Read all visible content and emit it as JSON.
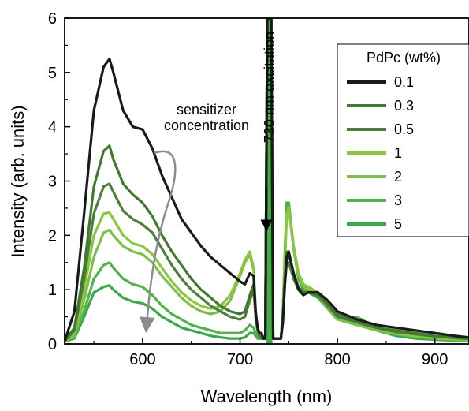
{
  "chart_data": {
    "type": "line",
    "xlabel": "Wavelength (nm)",
    "ylabel": "Intensity (arb. units)",
    "xlim": [
      520,
      935
    ],
    "ylim": [
      0,
      6
    ],
    "x_ticks": [
      600,
      700,
      800,
      900
    ],
    "y_ticks": [
      0,
      1,
      2,
      3,
      4,
      5,
      6
    ],
    "legend": {
      "title": "PdPc (wt%)",
      "placement": "top-right"
    },
    "annotations": {
      "sensitizer": [
        "sensitizer",
        "concentration"
      ],
      "excitation": "730 nm excitation",
      "excitation_wavelength": 730
    },
    "colors": {
      "0.1": "#1a1a1a",
      "0.3": "#3f7a2e",
      "0.5": "#4b7f3a",
      "1": "#8cc63f",
      "2": "#7cc04a",
      "3": "#4fb347",
      "5": "#39a84a",
      "excitation": "#3cb043",
      "arrow": "#8c8c8c"
    },
    "series": [
      {
        "name": "0.1",
        "x": [
          520,
          530,
          540,
          550,
          560,
          566,
          570,
          580,
          590,
          600,
          610,
          620,
          630,
          640,
          650,
          660,
          670,
          680,
          690,
          700,
          705,
          710,
          714,
          716,
          718,
          720,
          722,
          724,
          726,
          728,
          730,
          732,
          734,
          736,
          738,
          740,
          742,
          744,
          746,
          748,
          750,
          755,
          760,
          765,
          770,
          780,
          790,
          800,
          820,
          840,
          860,
          880,
          900,
          920,
          935
        ],
        "y": [
          0.05,
          0.6,
          2.4,
          4.3,
          5.1,
          5.25,
          5.0,
          4.3,
          4.0,
          3.95,
          3.6,
          3.1,
          2.7,
          2.3,
          2.05,
          1.8,
          1.6,
          1.45,
          1.3,
          1.15,
          1.1,
          1.3,
          1.25,
          0.6,
          0.3,
          0.2,
          0.2,
          0.1,
          0.1,
          6,
          6,
          6,
          0.1,
          0.1,
          0.1,
          0.1,
          0.1,
          0.4,
          1.1,
          1.6,
          1.7,
          1.3,
          1.0,
          0.9,
          0.95,
          0.95,
          0.8,
          0.6,
          0.45,
          0.35,
          0.3,
          0.25,
          0.2,
          0.15,
          0.12
        ]
      },
      {
        "name": "0.3",
        "x": [
          520,
          530,
          540,
          550,
          560,
          566,
          570,
          580,
          590,
          600,
          610,
          620,
          630,
          640,
          650,
          660,
          670,
          680,
          690,
          700,
          705,
          710,
          714,
          716,
          718,
          720,
          722,
          724,
          726,
          728,
          730,
          732,
          734,
          736,
          738,
          740,
          742,
          744,
          746,
          748,
          750,
          755,
          760,
          765,
          770,
          780,
          790,
          800,
          820,
          840,
          860,
          880,
          900,
          920,
          935
        ],
        "y": [
          0.05,
          0.3,
          1.4,
          2.9,
          3.55,
          3.65,
          3.4,
          2.95,
          2.75,
          2.6,
          2.35,
          2.0,
          1.7,
          1.45,
          1.2,
          1.0,
          0.85,
          0.7,
          0.6,
          0.55,
          0.6,
          0.9,
          1.1,
          0.5,
          0.25,
          0.15,
          0.1,
          0.1,
          0.1,
          6,
          6,
          6,
          0.1,
          0.1,
          0.1,
          0.1,
          0.1,
          0.5,
          1.2,
          1.7,
          1.65,
          1.3,
          1.05,
          0.95,
          0.95,
          0.9,
          0.75,
          0.55,
          0.4,
          0.3,
          0.25,
          0.2,
          0.15,
          0.12,
          0.1
        ]
      },
      {
        "name": "0.5",
        "x": [
          520,
          530,
          540,
          550,
          560,
          566,
          570,
          580,
          590,
          600,
          610,
          620,
          630,
          640,
          650,
          660,
          670,
          680,
          690,
          700,
          705,
          710,
          714,
          716,
          718,
          720,
          722,
          724,
          726,
          728,
          730,
          732,
          734,
          736,
          738,
          740,
          742,
          744,
          746,
          748,
          750,
          755,
          760,
          765,
          770,
          780,
          790,
          800,
          820,
          840,
          860,
          880,
          900,
          920,
          935
        ],
        "y": [
          0.05,
          0.25,
          1.2,
          2.4,
          2.9,
          2.95,
          2.8,
          2.45,
          2.3,
          2.2,
          2.05,
          1.75,
          1.45,
          1.2,
          1.0,
          0.85,
          0.7,
          0.6,
          0.5,
          0.45,
          0.5,
          0.8,
          1.0,
          0.5,
          0.25,
          0.15,
          0.1,
          0.1,
          0.1,
          6,
          6,
          6,
          0.1,
          0.1,
          0.1,
          0.1,
          0.1,
          0.5,
          1.1,
          1.5,
          1.5,
          1.2,
          1.0,
          0.95,
          0.95,
          0.9,
          0.7,
          0.5,
          0.4,
          0.3,
          0.22,
          0.18,
          0.14,
          0.11,
          0.09
        ]
      },
      {
        "name": "1",
        "x": [
          520,
          530,
          540,
          550,
          560,
          566,
          570,
          580,
          590,
          600,
          610,
          620,
          630,
          640,
          650,
          660,
          670,
          680,
          690,
          700,
          705,
          710,
          714,
          716,
          718,
          720,
          722,
          724,
          726,
          728,
          730,
          732,
          734,
          736,
          738,
          740,
          742,
          744,
          746,
          748,
          750,
          755,
          760,
          765,
          770,
          780,
          790,
          800,
          820,
          840,
          860,
          880,
          900,
          920,
          935
        ],
        "y": [
          0.05,
          0.2,
          1.0,
          2.0,
          2.4,
          2.42,
          2.3,
          2.0,
          1.85,
          1.8,
          1.65,
          1.4,
          1.15,
          0.95,
          0.8,
          0.7,
          0.65,
          0.7,
          0.9,
          1.3,
          1.55,
          1.7,
          1.4,
          0.6,
          0.25,
          0.15,
          0.1,
          0.1,
          0.1,
          6,
          6,
          6,
          0.1,
          0.1,
          0.1,
          0.1,
          0.1,
          0.6,
          1.5,
          2.4,
          2.5,
          1.8,
          1.3,
          1.1,
          1.05,
          0.95,
          0.7,
          0.5,
          0.4,
          0.3,
          0.2,
          0.15,
          0.12,
          0.1,
          0.08
        ]
      },
      {
        "name": "2",
        "x": [
          520,
          530,
          540,
          550,
          560,
          566,
          570,
          580,
          590,
          600,
          610,
          620,
          630,
          640,
          650,
          660,
          670,
          680,
          690,
          700,
          705,
          710,
          714,
          716,
          718,
          720,
          722,
          724,
          726,
          728,
          730,
          732,
          734,
          736,
          738,
          740,
          742,
          744,
          746,
          748,
          750,
          755,
          760,
          765,
          770,
          780,
          790,
          800,
          820,
          840,
          860,
          880,
          900,
          920,
          935
        ],
        "y": [
          0.05,
          0.15,
          0.8,
          1.6,
          2.05,
          2.1,
          2.0,
          1.8,
          1.7,
          1.65,
          1.5,
          1.25,
          1.05,
          0.85,
          0.7,
          0.6,
          0.55,
          0.6,
          0.8,
          1.25,
          1.5,
          1.65,
          1.35,
          0.6,
          0.25,
          0.15,
          0.1,
          0.1,
          0.1,
          6,
          6,
          6,
          0.1,
          0.1,
          0.1,
          0.1,
          0.1,
          0.6,
          1.5,
          2.4,
          2.5,
          1.75,
          1.25,
          1.05,
          1.0,
          0.9,
          0.65,
          0.45,
          0.35,
          0.25,
          0.18,
          0.14,
          0.1,
          0.08,
          0.07
        ]
      },
      {
        "name": "3",
        "x": [
          520,
          530,
          540,
          550,
          560,
          566,
          570,
          580,
          590,
          600,
          610,
          620,
          630,
          640,
          650,
          660,
          670,
          680,
          690,
          700,
          705,
          710,
          714,
          716,
          718,
          720,
          722,
          724,
          726,
          728,
          730,
          732,
          734,
          736,
          738,
          740,
          742,
          744,
          746,
          748,
          750,
          755,
          760,
          765,
          770,
          780,
          790,
          800,
          820,
          840,
          860,
          880,
          900,
          920,
          935
        ],
        "y": [
          0.05,
          0.12,
          0.6,
          1.2,
          1.45,
          1.5,
          1.4,
          1.2,
          1.1,
          1.05,
          0.9,
          0.7,
          0.55,
          0.45,
          0.35,
          0.3,
          0.25,
          0.2,
          0.2,
          0.2,
          0.25,
          0.35,
          0.3,
          0.2,
          0.15,
          0.1,
          0.1,
          0.1,
          0.1,
          6,
          6,
          6,
          0.1,
          0.1,
          0.1,
          0.1,
          0.1,
          0.6,
          1.6,
          2.5,
          2.6,
          1.8,
          1.3,
          1.1,
          1.0,
          0.9,
          0.7,
          0.5,
          0.5,
          0.3,
          0.2,
          0.15,
          0.1,
          0.08,
          0.06
        ]
      },
      {
        "name": "5",
        "x": [
          520,
          530,
          540,
          550,
          560,
          566,
          570,
          580,
          590,
          600,
          610,
          620,
          630,
          640,
          650,
          660,
          670,
          680,
          690,
          700,
          705,
          710,
          714,
          716,
          718,
          720,
          722,
          724,
          726,
          728,
          730,
          732,
          734,
          736,
          738,
          740,
          742,
          744,
          746,
          748,
          750,
          755,
          760,
          765,
          770,
          780,
          790,
          800,
          820,
          840,
          860,
          880,
          900,
          920,
          935
        ],
        "y": [
          0.05,
          0.1,
          0.5,
          0.95,
          1.05,
          1.08,
          1.0,
          0.85,
          0.78,
          0.75,
          0.65,
          0.5,
          0.4,
          0.3,
          0.25,
          0.2,
          0.15,
          0.12,
          0.1,
          0.1,
          0.12,
          0.2,
          0.2,
          0.15,
          0.1,
          0.1,
          0.1,
          0.1,
          0.1,
          6,
          6,
          6,
          0.1,
          0.1,
          0.1,
          0.1,
          0.1,
          0.6,
          1.7,
          2.6,
          2.6,
          1.75,
          1.2,
          1.0,
          0.95,
          0.85,
          0.65,
          0.45,
          0.45,
          0.25,
          0.15,
          0.1,
          0.08,
          0.06,
          0.05
        ]
      }
    ]
  }
}
